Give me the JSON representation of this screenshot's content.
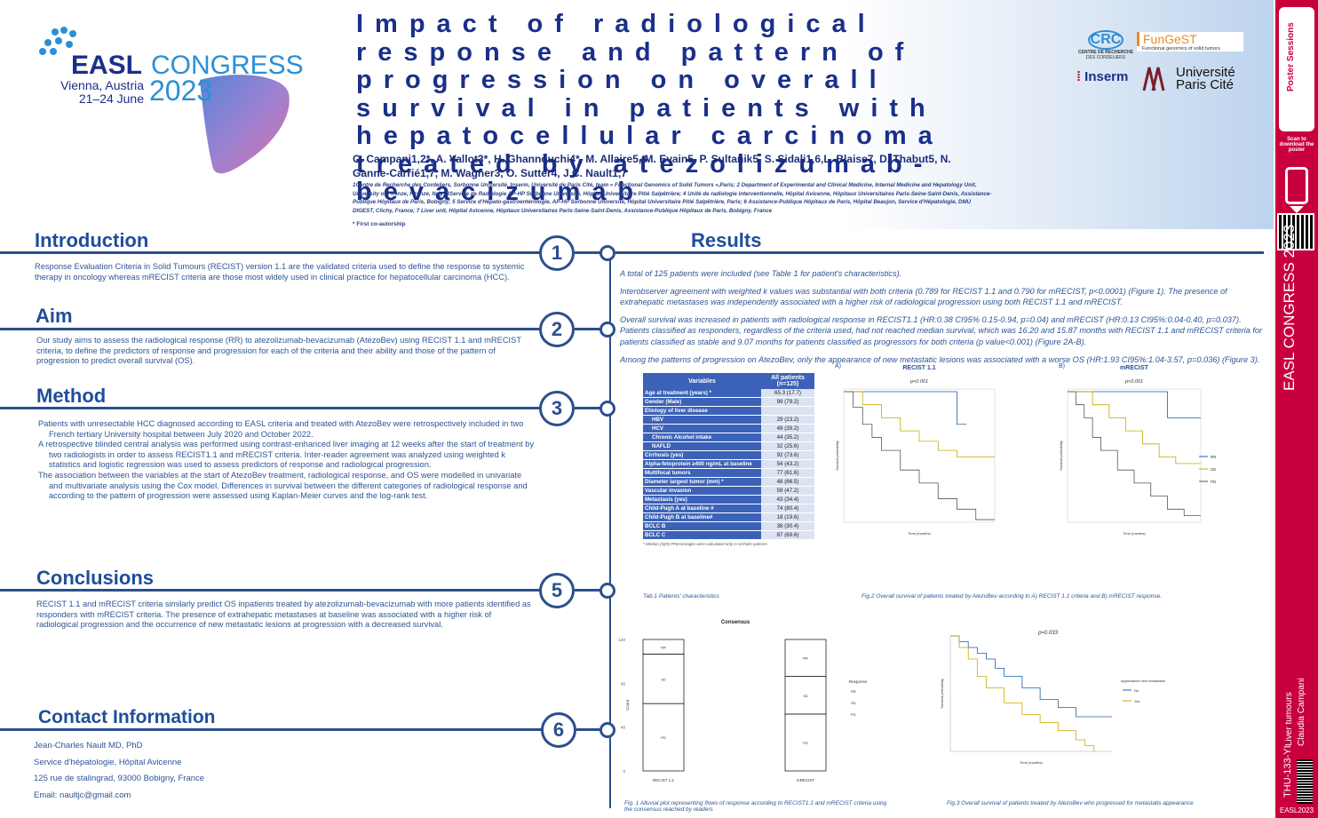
{
  "header": {
    "congress_name": "EASL",
    "congress_word": "CONGRESS",
    "location": "Vienna, Austria",
    "dates": "21–24 June",
    "year": "2023",
    "title": "Impact of radiological response and pattern of progression on overall survival in patients with hepatocellular carcinoma treated by atezolizumab-bevacizumab",
    "authors_line1": "C. Campani1,2*, A. Vallot3*, H. Ghannouchi4*, M. Allaire5, M. Evain5, P. Sultanik5, S. Sidali1,6,L. Blaise7, D. Thabut5, N.",
    "authors_line2": "Ganne-Carrié1,7, M. Wagner3, O. Sutter4, J.C. Nault1,7",
    "affiliations": "1Centre de Recherche des Cordeliers, Sorbonne Université, Inserm, Université de Paris Cité, team « Functional Genomics of Solid Tumors »,Paris; 2 Department of Experimental and Clinical Medicine, Internal Medicine and Hepatology Unit, University of Firenze, Firenze, Italy; 3Service de Radiologie AP-HP Sorbonne Université, Hôpital Universitaire Pitié Salpêtrière; 4 Unité de radiologie interventionnelle, Hôpital Avicenne, Hôpitaux Universitaires Paris-Seine-Saint-Denis, Assistance-Publique Hôpitaux de Paris, Bobigny; 5 Service d'Hépato-gastroentérologie, AP-HP Sorbonne Université, Hôpital Universitaire Pitié Salpêtrière, Paris; 6 Assistance-Publique Hôpitaux de Paris, Hôpital Beaujon, Service d'Hépatologie, DMU DIGEST, Clichy, France; 7 Liver unit, Hôpital Avicenne, Hôpitaux Universitaires Paris-Seine-Saint-Denis, Assistance-Publique Hôpitaux de Paris, Bobigny, France",
    "first_coauthor": "* First co-autorship",
    "logo_crc": "CRC",
    "logo_crc_sub": "CENTRE DE RECHERCHE",
    "logo_crc_sub2": "DES CORDELIERS",
    "logo_fungest": "FunGeST",
    "logo_fungest_sub": "Functional genomics of solid tumors",
    "logo_inserm": "Inserm",
    "logo_up1": "Université",
    "logo_up2": "Paris Cité"
  },
  "sections": {
    "intro": {
      "num": "1",
      "title": "Introduction",
      "text": "Response Evaluation Criteria in Solid Tumours (RECIST) version 1.1 are the validated criteria used to define the response to systemic therapy in oncology whereas mRECIST criteria are those most widely used in clinical practice for hepatocellular carcinoma (HCC)."
    },
    "aim": {
      "num": "2",
      "title": "Aim",
      "text": "Our study aims to assess the radiological response (RR) to atezolizumab-bevacizumab (AtezoBev) using RECIST 1.1 and mRECIST criteria, to define the predictors of response and progression for each of the criteria and their ability and those of the pattern of progression to predict overall survival (OS)."
    },
    "method": {
      "num": "3",
      "title": "Method",
      "items": [
        "Patients with unresectable HCC diagnosed according to EASL criteria and treated with AtezoBev were retrospectively included in two French tertiary University hospital between July 2020 and October 2022.",
        "A retrospective blinded central analysis was performed using contrast-enhanced liver imaging at 12 weeks after the start of treatment by two radiologists in order to assess RECIST1.1 and mRECIST criteria. Inter-reader agreement was analyzed using weighted k statistics and logistic regression was used to assess predictors of response and radiological progression.",
        "The association between the variables at the start of AtezoBev treatment, radiological response, and OS were modelled in univariate and multivariate analysis using the Cox model. Differences in survival between the different categories of radiological response and according to the pattern of progression were assessed using Kaplan-Meier curves and the log-rank test."
      ]
    },
    "conclusions": {
      "num": "5",
      "title": "Conclusions",
      "text": "RECIST 1.1 and mRECIST criteria similarly predict OS inpatients treated by atezolizumab-bevacizumab with more patients identified as responders with mRECIST criteria. The presence of extrahepatic metastases at baseline was associated with a higher risk of radiological progression and the occurrence of new metastatic lesions at progression with a decreased survival."
    },
    "contact": {
      "num": "6",
      "title": "Contact Information",
      "lines": [
        "Jean-Charles Nault MD, PhD",
        "Service d'hépatologie, Hôpital Avicenne",
        "125 rue de stalingrad, 93000 Bobigny, France",
        "Email: naultjc@gmail.com"
      ]
    },
    "results": {
      "title": "Results",
      "paras": [
        "A total of 125 patients were included (see Table 1 for patient's characteristics).",
        "Interobserver agreement with weighted k values was substantial with both criteria (0.789 for RECIST 1.1 and 0.790 for mRECIST, p<0.0001) (Figure 1). The presence of extrahepatic metastases was independently associated with a higher risk of radiological progression using both RECIST 1.1 and mRECIST.",
        "Overall survival was increased in patients with radiological response in RECIST1.1 (HR:0.38 CI95% 0.15-0.94, p=0.04) and mRECIST (HR:0.13 CI95%:0.04-0.40, p=0.037). Patients classified as responders, regardless of the criteria used, had not reached median survival, which was 16.20 and 15.87 months with RECIST 1.1 and mRECIST criteria for patients classified as stable and 9.07 months for patients classified as progressors for both criteria (p value<0.001) (Figure 2A-B).",
        "Among the patterns of progression on AtezoBev, only the appearance of new metastatic lesions was associated with a worse OS (HR:1.93 CI95%:1.04-3.57, p=0.036) (Figure 3)."
      ]
    }
  },
  "table1": {
    "col1": "Variables",
    "col2": "All patients (n=125)",
    "rows": [
      [
        "Age at treatment (years) *",
        "65.3 (17.7)"
      ],
      [
        "Gender (Male)",
        "99 (79.2)"
      ],
      [
        "Etiology of liver disease",
        ""
      ],
      [
        "HBV",
        "29 (23.2)"
      ],
      [
        "HCV",
        "49 (39.2)"
      ],
      [
        "Chronic Alcohol intake",
        "44 (35.2)"
      ],
      [
        "NAFLD",
        "32 (25.6)"
      ],
      [
        "Cirrhosis (yes)",
        "92 (73.6)"
      ],
      [
        "Alpha-fetoprotein ≥400 ng/mL at baseline",
        "54 (43.2)"
      ],
      [
        "Multifocal tumors",
        "77 (61.6)"
      ],
      [
        "Diameter largest tumor (mm) *",
        "48 (66.5)"
      ],
      [
        "Vascular invasion",
        "59 (47.2)"
      ],
      [
        "Metastasis (yes)",
        "43 (34.4)"
      ],
      [
        "Child-Pugh A at baseline #",
        "74 (80.4)"
      ],
      [
        "Child-Pugh B at baseline#",
        "18 (19.6)"
      ],
      [
        "BCLC B",
        "38 (30.4)"
      ],
      [
        "BCLC C",
        "87 (69.6)"
      ]
    ],
    "footnote": "* Median (IQR) #Percentages were calculated only in cirrhotic patients",
    "caption": "Tab.1 Patients' characteristics"
  },
  "fig2": {
    "caption": "Fig.2 Overall survival of patients treated by AtezoBev according to A) RECIST 1.1 criteria and B) mRECIST response.",
    "a_label": "A)",
    "b_label": "B)",
    "a_title": "RECIST 1.1",
    "b_title": "mRECIST",
    "pval": "p<0.001",
    "ylabel": "Survival probability",
    "xlabel": "Time (months)",
    "legend": [
      "RR",
      "SD",
      "PD"
    ],
    "colors": [
      "#1f5fa8",
      "#c9a800",
      "#555555"
    ]
  },
  "fig1": {
    "title": "Consensus",
    "caption": "Fig. 1 Alluvial plot representing flows of response according to RECIST1.1 and mRECIST criteria using the consensus reached by readers",
    "xcats": [
      "RECIST 1.1",
      "mRECIST"
    ],
    "ylabel": "Count",
    "legend_title": "Response",
    "legend": [
      "RR",
      "SD",
      "PD"
    ],
    "yticks": [
      "120",
      "80",
      "40",
      "0"
    ],
    "recist": {
      "RR": 14,
      "SD": 47,
      "PD": 64
    },
    "mrecist": {
      "RR": 35,
      "SD": 36,
      "PD": 54
    }
  },
  "fig3": {
    "pval": "p=0.033",
    "caption": "Fig.3 Overall survival of patients treated by AtezoBev who progressed for metastatis appearance",
    "legend_title": "Appearance new metastasis",
    "legend": [
      "No",
      "Yes"
    ],
    "xlabel": "Time (months)",
    "ylabel": "Survival probability",
    "colors": [
      "#1f5fa8",
      "#c9a800"
    ]
  },
  "sidebar": {
    "scan": "Scan to download the poster",
    "topic": "Liver tumours",
    "author": "Claudia Campani",
    "code": "THU-133-YI",
    "foot": "EASL2023"
  }
}
